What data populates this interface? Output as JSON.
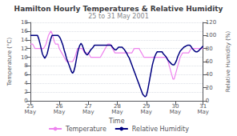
{
  "chart_data": {
    "type": "line",
    "title": "Hamilton Hourly Temperatures & Relative Humidity",
    "subtitle": "25 to 31 May 2001",
    "xlabel": "Time",
    "ylabel": "Temperature (°C)",
    "y2label": "Relative Humidity (%)",
    "categories": [
      "25\nMay",
      null,
      null,
      null,
      null,
      null,
      null,
      null,
      null,
      null,
      null,
      null,
      null,
      null,
      null,
      null,
      null,
      null,
      null,
      null,
      null,
      null,
      null,
      null,
      "26\nMay",
      null,
      null,
      null,
      null,
      null,
      null,
      null,
      null,
      null,
      null,
      null,
      null,
      null,
      null,
      null,
      null,
      null,
      null,
      null,
      null,
      null,
      null,
      null,
      "27\nMay",
      null,
      null,
      null,
      null,
      null,
      null,
      null,
      null,
      null,
      null,
      null,
      null,
      null,
      null,
      null,
      null,
      null,
      null,
      null,
      null,
      null,
      null,
      null,
      "28\nMay",
      null,
      null,
      null,
      null,
      null,
      null,
      null,
      null,
      null,
      null,
      null,
      null,
      null,
      null,
      null,
      null,
      null,
      null,
      null,
      null,
      null,
      null,
      null,
      "29\nMay",
      null,
      null,
      null,
      null,
      null,
      null,
      null,
      null,
      null,
      null,
      null,
      null,
      null,
      null,
      null,
      null,
      null,
      null,
      null,
      null,
      null,
      null,
      null,
      "30\nMay",
      null,
      null,
      null,
      null,
      null,
      null,
      null,
      null,
      null,
      null,
      null,
      null,
      null,
      null,
      null,
      null,
      null,
      null,
      null,
      null,
      null,
      null,
      "31\nMay"
    ],
    "ylim": [
      0,
      18
    ],
    "yticks": [
      0,
      2,
      4,
      6,
      8,
      10,
      12,
      14,
      16,
      18
    ],
    "y2lim": [
      0,
      120
    ],
    "y2ticks": [
      0,
      20,
      40,
      60,
      80,
      100,
      120
    ],
    "grid": true,
    "legend": "bottom",
    "series": [
      {
        "name": "Temperature",
        "color": "#ee82ee",
        "values": [
          13,
          13,
          13,
          12.5,
          12,
          12,
          12,
          12,
          12,
          12,
          12,
          12,
          12.5,
          13,
          14,
          15,
          15.5,
          16,
          15.5,
          14.5,
          13.5,
          13,
          13,
          13,
          12,
          11.5,
          11,
          10.5,
          10,
          9.5,
          9,
          9,
          9,
          9,
          9,
          9,
          9.5,
          10,
          11,
          12,
          12,
          12,
          12,
          12,
          11.5,
          11,
          11,
          11,
          11,
          10.5,
          10,
          10,
          10,
          10,
          10,
          10,
          10,
          10,
          10,
          10.5,
          11,
          11.5,
          12,
          12.5,
          13,
          13,
          13,
          12.5,
          12,
          11.5,
          11,
          11,
          11,
          11,
          11,
          11,
          11,
          11,
          11,
          11,
          11,
          11,
          11,
          11,
          11,
          11.5,
          12,
          12,
          12,
          12,
          12,
          11.5,
          11,
          10.5,
          10,
          10,
          10,
          10,
          10,
          10,
          10,
          10,
          10,
          10,
          10,
          10,
          10,
          10,
          10,
          10,
          10,
          10,
          10,
          10,
          9,
          8,
          7,
          6,
          5,
          5,
          6,
          7,
          8,
          9,
          10,
          10.5,
          11,
          11,
          11,
          11,
          11,
          11,
          11.5,
          12,
          12,
          12,
          12,
          12,
          12,
          12,
          12,
          12,
          12,
          12
        ]
      },
      {
        "name": "Relative Humidity",
        "color": "#000080",
        "axis": "y2",
        "values": [
          100,
          100,
          100,
          100,
          100,
          100,
          100,
          95,
          88,
          80,
          72,
          68,
          65,
          68,
          72,
          80,
          88,
          95,
          100,
          100,
          100,
          100,
          100,
          100,
          98,
          95,
          90,
          85,
          78,
          72,
          65,
          60,
          55,
          50,
          45,
          42,
          45,
          52,
          62,
          72,
          80,
          85,
          88,
          85,
          80,
          75,
          72,
          70,
          72,
          75,
          78,
          80,
          82,
          85,
          85,
          85,
          85,
          85,
          85,
          85,
          85,
          85,
          85,
          85,
          85,
          85,
          85,
          85,
          82,
          80,
          78,
          78,
          80,
          82,
          82,
          82,
          82,
          80,
          78,
          75,
          72,
          68,
          65,
          60,
          55,
          50,
          45,
          40,
          35,
          30,
          25,
          20,
          15,
          10,
          8,
          6,
          8,
          15,
          25,
          35,
          45,
          55,
          62,
          68,
          72,
          75,
          75,
          75,
          75,
          75,
          72,
          70,
          68,
          65,
          62,
          60,
          58,
          56,
          55,
          55,
          58,
          62,
          68,
          72,
          76,
          78,
          80,
          82,
          83,
          84,
          85,
          85,
          85,
          83,
          80,
          78,
          76,
          75,
          75,
          76,
          78,
          80,
          82,
          84
        ]
      }
    ]
  }
}
